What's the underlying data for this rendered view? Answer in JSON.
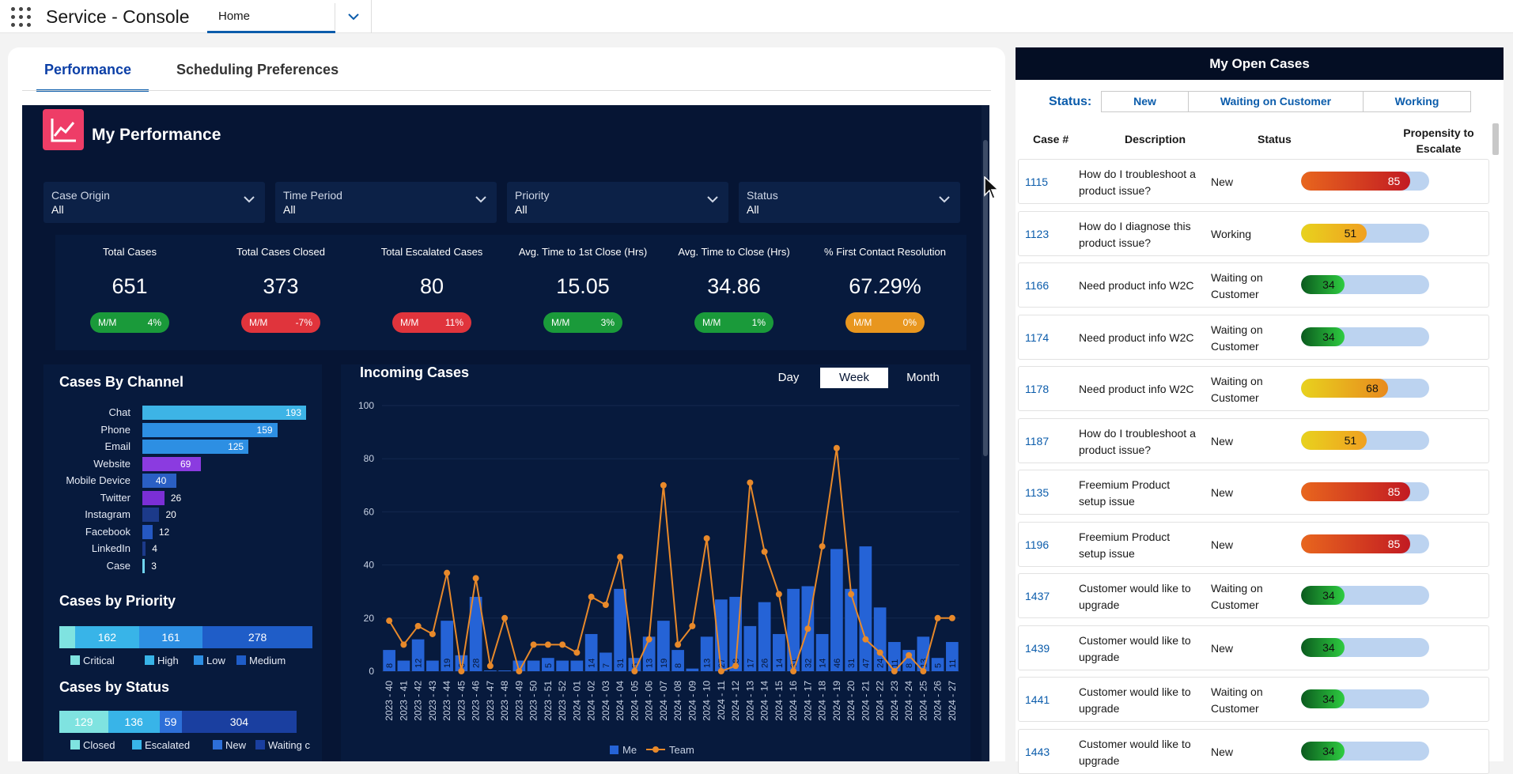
{
  "app": {
    "title": "Service - Console",
    "home_tab": "Home"
  },
  "page_tabs": [
    "Performance",
    "Scheduling Preferences"
  ],
  "dashboard": {
    "title": "My Performance",
    "filters": [
      {
        "label": "Case Origin",
        "value": "All"
      },
      {
        "label": "Time Period",
        "value": "All"
      },
      {
        "label": "Priority",
        "value": "All"
      },
      {
        "label": "Status",
        "value": "All"
      }
    ],
    "kpis": [
      {
        "label": "Total Cases",
        "value": "651",
        "delta_label": "M/M",
        "delta": "4%",
        "color": "#1a9a3a"
      },
      {
        "label": "Total Cases Closed",
        "value": "373",
        "delta_label": "M/M",
        "delta": "-7%",
        "color": "#e0343c"
      },
      {
        "label": "Total Escalated Cases",
        "value": "80",
        "delta_label": "M/M",
        "delta": "11%",
        "color": "#e0343c"
      },
      {
        "label": "Avg. Time to 1st Close (Hrs)",
        "value": "15.05",
        "delta_label": "M/M",
        "delta": "3%",
        "color": "#1a9a3a"
      },
      {
        "label": "Avg. Time to Close (Hrs)",
        "value": "34.86",
        "delta_label": "M/M",
        "delta": "1%",
        "color": "#1a9a3a"
      },
      {
        "label": "% First Contact Resolution",
        "value": "67.29%",
        "delta_label": "M/M",
        "delta": "0%",
        "color": "#e8961e"
      }
    ],
    "channel": {
      "title": "Cases By Channel",
      "items": [
        {
          "label": "Chat",
          "value": 193,
          "color": "#3db4e6"
        },
        {
          "label": "Phone",
          "value": 159,
          "color": "#2d8fe3"
        },
        {
          "label": "Email",
          "value": 125,
          "color": "#2d8fe3"
        },
        {
          "label": "Website",
          "value": 69,
          "color": "#8b3be0"
        },
        {
          "label": "Mobile Device",
          "value": 40,
          "color": "#2a5fc4"
        },
        {
          "label": "Twitter",
          "value": 26,
          "color": "#7b2fd6"
        },
        {
          "label": "Instagram",
          "value": 20,
          "color": "#1c3a8a"
        },
        {
          "label": "Facebook",
          "value": 12,
          "color": "#2558c2"
        },
        {
          "label": "LinkedIn",
          "value": 4,
          "color": "#1c3a8a"
        },
        {
          "label": "Case",
          "value": 3,
          "color": "#6fd4ee"
        }
      ]
    },
    "priority": {
      "title": "Cases by Priority",
      "segments": [
        {
          "name": "Critical",
          "value": 40,
          "label": "",
          "color": "#7fe3e0"
        },
        {
          "name": "High",
          "value": 162,
          "label": "162",
          "color": "#38b4e8"
        },
        {
          "name": "Low",
          "value": 161,
          "label": "161",
          "color": "#2d8fe3"
        },
        {
          "name": "Medium",
          "value": 278,
          "label": "278",
          "color": "#1f5dc8"
        }
      ]
    },
    "status": {
      "title": "Cases by Status",
      "segments": [
        {
          "name": "Closed",
          "value": 129,
          "label": "129",
          "color": "#7fe3e0"
        },
        {
          "name": "Escalated",
          "value": 136,
          "label": "136",
          "color": "#38b4e8"
        },
        {
          "name": "New",
          "value": 59,
          "label": "59",
          "color": "#2d6fd8"
        },
        {
          "name": "Waiting on Customer",
          "value": 304,
          "label": "304",
          "color": "#1a3fa0"
        }
      ],
      "legend_last": "Waiting c"
    },
    "incoming": {
      "title": "Incoming Cases",
      "toggle": [
        "Day",
        "Week",
        "Month"
      ],
      "active": "Week"
    }
  },
  "chart_data": {
    "type": "bar",
    "title": "Incoming Cases",
    "xlabel": "",
    "ylabel": "",
    "ylim": [
      0,
      100
    ],
    "yticks": [
      0,
      20,
      40,
      60,
      80,
      100
    ],
    "categories": [
      "2023 - 40",
      "2023 - 41",
      "2023 - 42",
      "2023 - 43",
      "2023 - 44",
      "2023 - 45",
      "2023 - 46",
      "2023 - 47",
      "2023 - 48",
      "2023 - 49",
      "2023 - 50",
      "2023 - 51",
      "2023 - 52",
      "2024 - 01",
      "2024 - 02",
      "2024 - 03",
      "2024 - 04",
      "2024 - 05",
      "2024 - 06",
      "2024 - 07",
      "2024 - 08",
      "2024 - 09",
      "2024 - 10",
      "2024 - 11",
      "2024 - 12",
      "2024 - 13",
      "2024 - 14",
      "2024 - 15",
      "2024 - 16",
      "2024 - 17",
      "2024 - 18",
      "2024 - 19",
      "2024 - 20",
      "2024 - 21",
      "2024 - 22",
      "2024 - 23",
      "2024 - 24",
      "2024 - 25",
      "2024 - 26",
      "2024 - 27"
    ],
    "series": [
      {
        "name": "Me",
        "type": "bar",
        "color": "#2563d6",
        "values": [
          8,
          4,
          12,
          4,
          19,
          6,
          28,
          0,
          0,
          4,
          4,
          5,
          4,
          4,
          14,
          7,
          31,
          5,
          13,
          19,
          8,
          1,
          13,
          27,
          28,
          17,
          26,
          14,
          31,
          32,
          14,
          46,
          31,
          47,
          24,
          11,
          8,
          13,
          5,
          11
        ]
      },
      {
        "name": "Team",
        "type": "line",
        "color": "#e8892a",
        "values": [
          19,
          10,
          17,
          14,
          37,
          0,
          35,
          2,
          20,
          0,
          10,
          10,
          10,
          7,
          28,
          25,
          43,
          0,
          12,
          70,
          10,
          17,
          50,
          0,
          2,
          71,
          45,
          29,
          0,
          16,
          47,
          84,
          29,
          12,
          7,
          0,
          6,
          0,
          20,
          20
        ]
      }
    ]
  },
  "open_cases": {
    "title": "My Open Cases",
    "status_label": "Status:",
    "status_buttons": [
      "New",
      "Waiting on Customer",
      "Working"
    ],
    "columns": [
      "Case #",
      "Description",
      "Status",
      "Propensity to Escalate"
    ],
    "rows": [
      {
        "id": "1115",
        "desc": "How do I troubleshoot a product issue?",
        "status": "New",
        "score": 85
      },
      {
        "id": "1123",
        "desc": "How do I diagnose this product issue?",
        "status": "Working",
        "score": 51
      },
      {
        "id": "1166",
        "desc": "Need product info W2C",
        "status": "Waiting on Customer",
        "score": 34
      },
      {
        "id": "1174",
        "desc": "Need product info W2C",
        "status": "Waiting on Customer",
        "score": 34
      },
      {
        "id": "1178",
        "desc": "Need product info W2C",
        "status": "Waiting on Customer",
        "score": 68
      },
      {
        "id": "1187",
        "desc": "How do I troubleshoot a product issue?",
        "status": "New",
        "score": 51
      },
      {
        "id": "1135",
        "desc": "Freemium Product setup issue",
        "status": "New",
        "score": 85
      },
      {
        "id": "1196",
        "desc": "Freemium Product setup issue",
        "status": "New",
        "score": 85
      },
      {
        "id": "1437",
        "desc": "Customer would like to upgrade",
        "status": "Waiting on Customer",
        "score": 34
      },
      {
        "id": "1439",
        "desc": "Customer would like to upgrade",
        "status": "New",
        "score": 34
      },
      {
        "id": "1441",
        "desc": "Customer would like to upgrade",
        "status": "Waiting on Customer",
        "score": 34
      },
      {
        "id": "1443",
        "desc": "Customer would like to upgrade",
        "status": "New",
        "score": 34
      }
    ]
  }
}
